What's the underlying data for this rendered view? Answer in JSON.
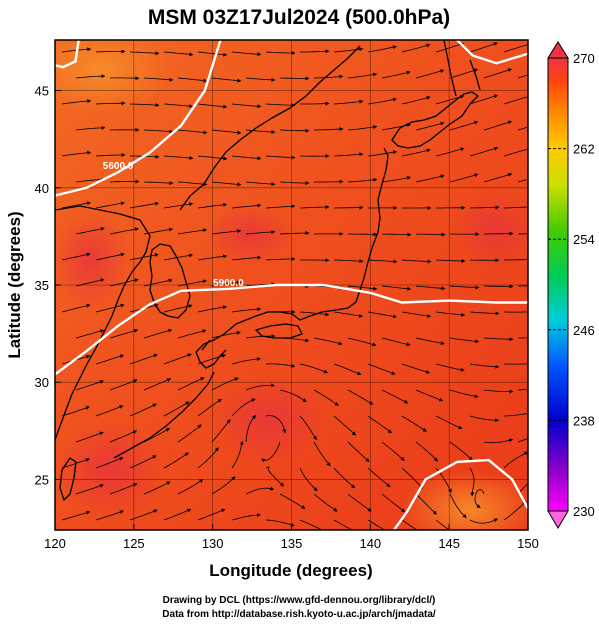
{
  "title": "MSM 03Z17Jul2024 (500.0hPa)",
  "xlabel": "Longitude (degrees)",
  "ylabel": "Latitude  (degrees)",
  "credits": [
    "Drawing by DCL (https://www.gfd-dennou.org/library/dcl/)",
    "Data from http://database.rish.kyoto-u.ac.jp/arch/jmadata/"
  ],
  "colors": {
    "field_low": "#e8341a",
    "field_mid": "#f0501e",
    "field_high": "#f26a22",
    "coast": "#000000",
    "streamline": "#000000",
    "contour": "#ffffff"
  },
  "chart_data": {
    "type": "heatmap",
    "title": "MSM 03Z17Jul2024 (500.0hPa)",
    "xlabel": "Longitude (degrees)",
    "ylabel": "Latitude  (degrees)",
    "xlim": [
      120,
      150
    ],
    "ylim": [
      22.4,
      47.6
    ],
    "xticks": [
      120,
      125,
      130,
      135,
      140,
      145,
      150
    ],
    "yticks": [
      25,
      30,
      35,
      40,
      45
    ],
    "grid": true,
    "colorbar": {
      "min": 230,
      "max": 270,
      "tick_labels": [
        "270",
        "262",
        "254",
        "246",
        "238",
        "230"
      ],
      "colors": [
        "#ff99ee",
        "#ff00ff",
        "#9900cc",
        "#0000cc",
        "#0044ff",
        "#0099ff",
        "#00cccc",
        "#00cc66",
        "#33cc00",
        "#99dd00",
        "#dddd00",
        "#ffcc00",
        "#ff9900",
        "#ff6600",
        "#ff3300",
        "#ee3344"
      ],
      "extend": "both"
    },
    "contours": [
      {
        "label": "5600.0",
        "points": [
          [
            120,
            39.6
          ],
          [
            122,
            40.0
          ],
          [
            124,
            40.8
          ],
          [
            126,
            41.8
          ],
          [
            128,
            43.2
          ],
          [
            129.5,
            45.0
          ],
          [
            130.5,
            47.6
          ]
        ]
      },
      {
        "label": "5900.0",
        "points": [
          [
            120,
            30.4
          ],
          [
            122,
            31.6
          ],
          [
            124,
            32.9
          ],
          [
            126,
            34.0
          ],
          [
            128,
            34.7
          ],
          [
            131,
            34.8
          ],
          [
            134,
            35.0
          ],
          [
            137,
            35.0
          ],
          [
            140,
            34.6
          ],
          [
            142,
            34.1
          ],
          [
            145,
            34.2
          ],
          [
            148,
            34.1
          ],
          [
            150,
            34.1
          ]
        ]
      },
      {
        "label": "",
        "points": [
          [
            145.5,
            47.6
          ],
          [
            146.5,
            46.8
          ],
          [
            148,
            46.4
          ],
          [
            150,
            46.9
          ]
        ]
      },
      {
        "label": "",
        "points": [
          [
            121.5,
            47.6
          ],
          [
            121.3,
            46.5
          ],
          [
            120.5,
            46.2
          ],
          [
            120,
            46.3
          ]
        ]
      },
      {
        "label": "",
        "points": [
          [
            141.5,
            22.4
          ],
          [
            142.3,
            23.3
          ],
          [
            143.5,
            25.0
          ],
          [
            145.5,
            25.9
          ],
          [
            147.5,
            26.0
          ],
          [
            149,
            25.0
          ],
          [
            150,
            23.5
          ]
        ]
      }
    ]
  }
}
